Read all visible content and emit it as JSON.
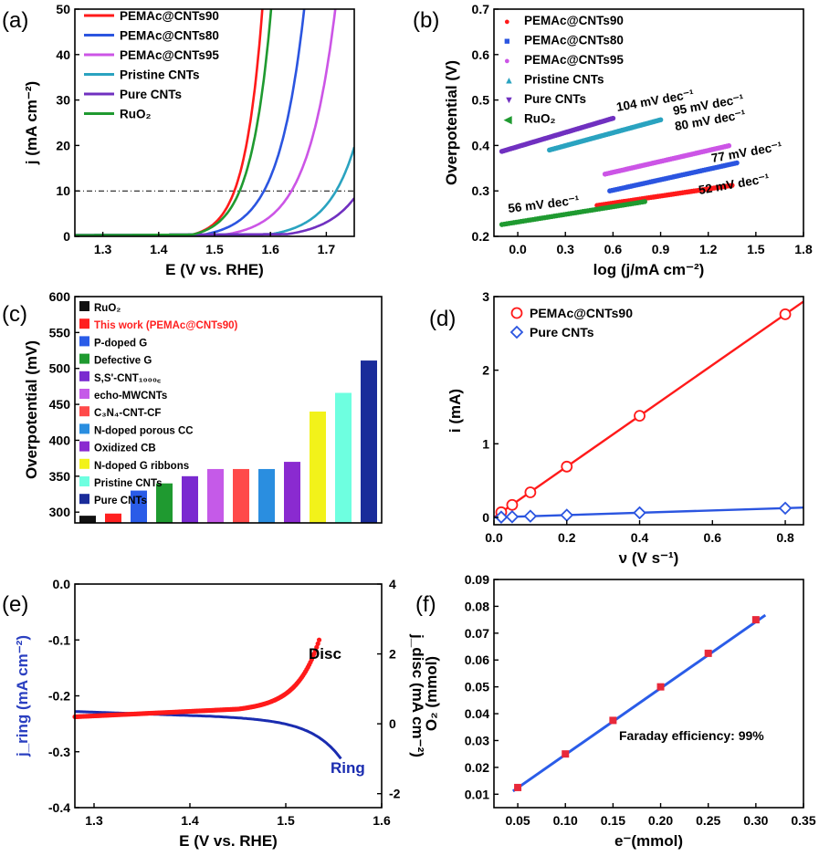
{
  "figure": {
    "panels": [
      "(a)",
      "(b)",
      "(c)",
      "(d)",
      "(e)",
      "(f)"
    ]
  },
  "chart_data": [
    {
      "id": "a",
      "type": "line",
      "panel_label": "(a)",
      "xlabel": "E (V vs. RHE)",
      "ylabel": "j (mA cm⁻²)",
      "xlim": [
        1.25,
        1.75
      ],
      "ylim": [
        0,
        50
      ],
      "xticks": [
        1.3,
        1.4,
        1.5,
        1.6,
        1.7
      ],
      "yticks": [
        0,
        10,
        20,
        30,
        40,
        50
      ],
      "reference_line_y": 10,
      "legend": "top-left",
      "series": [
        {
          "name": "PEMAc@CNTs90",
          "color": "#ff1a1a",
          "onset": 1.46,
          "k": 0.032
        },
        {
          "name": "PEMAc@CNTs80",
          "color": "#2b55e0",
          "onset": 1.48,
          "k": 0.046
        },
        {
          "name": "PEMAc@CNTs95",
          "color": "#cc55e6",
          "onset": 1.52,
          "k": 0.05
        },
        {
          "name": "Pristine CNTs",
          "color": "#2aa3c0",
          "onset": 1.6,
          "k": 0.05
        },
        {
          "name": "Pure CNTs",
          "color": "#7030c0",
          "onset": 1.63,
          "k": 0.055
        },
        {
          "name": "RuO₂",
          "color": "#1f9a30",
          "onset": 1.46,
          "k": 0.036
        }
      ]
    },
    {
      "id": "b",
      "type": "scatter",
      "panel_label": "(b)",
      "xlabel": "log (j/mA cm⁻²)",
      "ylabel": "Overpotential (V)",
      "xlim": [
        -0.15,
        1.8
      ],
      "ylim": [
        0.2,
        0.7
      ],
      "xticks": [
        0.0,
        0.3,
        0.6,
        0.9,
        1.2,
        1.5,
        1.8
      ],
      "yticks": [
        0.2,
        0.3,
        0.4,
        0.5,
        0.6,
        0.7
      ],
      "legend": "top-left",
      "series": [
        {
          "name": "PEMAc@CNTs90",
          "color": "#ff1a1a",
          "x_range": [
            0.5,
            1.35
          ],
          "y_start": 0.268,
          "slope_mV_dec": 52,
          "label": "52 mV dec⁻¹"
        },
        {
          "name": "PEMAc@CNTs80",
          "color": "#2b55e0",
          "x_range": [
            0.58,
            1.38
          ],
          "y_start": 0.3,
          "slope_mV_dec": 77,
          "label": "77 mV dec⁻¹"
        },
        {
          "name": "PEMAc@CNTs95",
          "color": "#cc55e6",
          "x_range": [
            0.55,
            1.33
          ],
          "y_start": 0.337,
          "slope_mV_dec": 80,
          "label": "80 mV dec⁻¹"
        },
        {
          "name": "Pristine CNTs",
          "color": "#2aa3c0",
          "x_range": [
            0.2,
            0.9
          ],
          "y_start": 0.39,
          "slope_mV_dec": 95,
          "label": "95 mV dec⁻¹"
        },
        {
          "name": "Pure CNTs",
          "color": "#7030c0",
          "x_range": [
            -0.1,
            0.6
          ],
          "y_start": 0.387,
          "slope_mV_dec": 104,
          "label": "104 mV dec⁻¹"
        },
        {
          "name": "RuO₂",
          "color": "#1f9a30",
          "x_range": [
            -0.1,
            0.8
          ],
          "y_start": 0.226,
          "slope_mV_dec": 56,
          "label": "56 mV dec⁻¹"
        }
      ]
    },
    {
      "id": "c",
      "type": "bar",
      "panel_label": "(c)",
      "ylabel": "Overpotential (mV)",
      "ylim": [
        285,
        600
      ],
      "yticks": [
        300,
        350,
        400,
        450,
        500,
        550,
        600
      ],
      "legend": "top-left",
      "categories": [
        "RuO₂",
        "This work (PEMAc@CNTs90)",
        "P-doped G",
        "Defective G",
        "S,S'-CNT₁₀₀₀꜀",
        "echo-MWCNTs",
        "C₃N₄-CNT-CF",
        "N-doped porous CC",
        "Oxidized CB",
        "N-doped G ribbons",
        "Pristine CNTs",
        "Pure CNTs"
      ],
      "values": [
        295,
        298,
        330,
        340,
        350,
        360,
        360,
        360,
        370,
        440,
        466,
        511
      ],
      "colors": [
        "#111111",
        "#ff2020",
        "#2a5ce8",
        "#1f9a30",
        "#7a2ad0",
        "#c55ae8",
        "#ff4a4a",
        "#2a8ee0",
        "#8a2ad0",
        "#f2f21a",
        "#6effe0",
        "#1a2c9a"
      ],
      "highlight_index": 1,
      "highlight_color": "#ff2020"
    },
    {
      "id": "d",
      "type": "scatter",
      "panel_label": "(d)",
      "xlabel": "ν (V s⁻¹)",
      "ylabel": "i (mA)",
      "xlim": [
        0,
        0.85
      ],
      "ylim": [
        -0.1,
        3
      ],
      "xticks": [
        0.0,
        0.2,
        0.4,
        0.6,
        0.8
      ],
      "yticks": [
        0,
        1,
        2,
        3
      ],
      "legend": "top-left",
      "series": [
        {
          "name": "PEMAc@CNTs90",
          "color": "#ff1a1a",
          "marker": "circle",
          "x": [
            0.02,
            0.05,
            0.1,
            0.2,
            0.4,
            0.8
          ],
          "y": [
            0.07,
            0.17,
            0.34,
            0.69,
            1.38,
            2.76
          ],
          "fit_slope": 3.45
        },
        {
          "name": "Pure CNTs",
          "color": "#2b55e0",
          "marker": "diamond",
          "x": [
            0.02,
            0.05,
            0.1,
            0.2,
            0.4,
            0.8
          ],
          "y": [
            0.003,
            0.008,
            0.016,
            0.03,
            0.062,
            0.125
          ],
          "fit_slope": 0.157
        }
      ]
    },
    {
      "id": "e",
      "type": "line",
      "panel_label": "(e)",
      "xlabel": "E (V vs. RHE)",
      "ylabel_left": "j_ring (mA cm⁻²)",
      "ylabel_right": "j_disc (mA cm⁻²)",
      "xlim": [
        1.28,
        1.6
      ],
      "ylim_left": [
        -0.4,
        0.0
      ],
      "ylim_right": [
        -2.4,
        4
      ],
      "xticks": [
        1.3,
        1.4,
        1.5,
        1.6
      ],
      "yticks_left": [
        0.0,
        -0.1,
        -0.2,
        -0.3,
        -0.4
      ],
      "yticks_right": [
        4,
        2,
        0,
        -2
      ],
      "series": [
        {
          "name": "Disc",
          "color": "#ff1a1a",
          "axis": "right",
          "x_range": [
            1.28,
            1.535
          ]
        },
        {
          "name": "Ring",
          "color": "#1a2cb0",
          "axis": "left",
          "x_range": [
            1.28,
            1.558
          ]
        }
      ],
      "annotations": [
        "Disc",
        "Ring"
      ]
    },
    {
      "id": "f",
      "type": "scatter",
      "panel_label": "(f)",
      "xlabel": "e⁻(mmol)",
      "ylabel": "O₂ (mmol)",
      "xlim": [
        0.025,
        0.35
      ],
      "ylim": [
        0.005,
        0.09
      ],
      "xticks": [
        0.05,
        0.1,
        0.15,
        0.2,
        0.25,
        0.3,
        0.35
      ],
      "yticks": [
        0.01,
        0.02,
        0.03,
        0.04,
        0.05,
        0.06,
        0.07,
        0.08,
        0.09
      ],
      "series": [
        {
          "name": "O2",
          "color": "#e8293a",
          "marker": "square",
          "x": [
            0.05,
            0.1,
            0.15,
            0.2,
            0.25,
            0.3
          ],
          "y": [
            0.0125,
            0.025,
            0.0375,
            0.05,
            0.0625,
            0.075
          ]
        }
      ],
      "fit": {
        "color": "#2a5ce8",
        "x_range": [
          0.045,
          0.31
        ],
        "slope": 0.2475
      },
      "annotation": "Faraday efficiency: 99%"
    }
  ]
}
